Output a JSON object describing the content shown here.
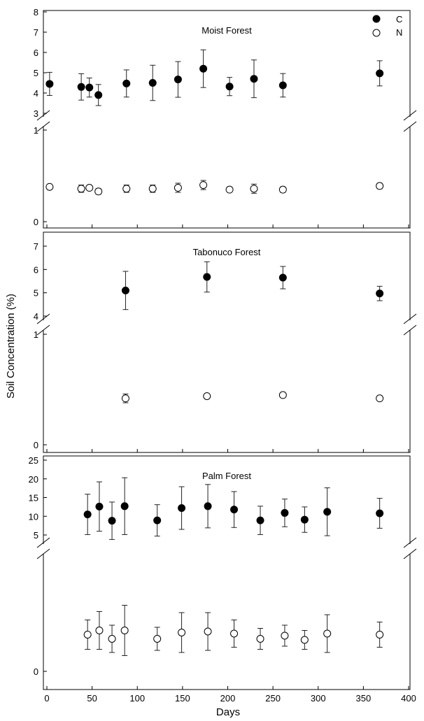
{
  "figure": {
    "ylabel": "Soil Concentration (%)",
    "xlabel": "Days",
    "legend": [
      {
        "label": "C",
        "marker": "filled-circle"
      },
      {
        "label": "N",
        "marker": "open-circle"
      }
    ],
    "legend_placement": "top-right of first panel"
  },
  "chart_data": [
    {
      "type": "scatter",
      "title": "Moist Forest",
      "xlim": [
        0,
        400
      ],
      "x_ticks": [
        0,
        50,
        100,
        150,
        200,
        250,
        300,
        350,
        400
      ],
      "axis_break": true,
      "upper_ylim": [
        3,
        8
      ],
      "upper_ticks": [
        "3",
        "4",
        "5",
        "6",
        "7",
        "8"
      ],
      "lower_ylim": [
        0,
        1
      ],
      "lower_ticks": [
        "0",
        "1"
      ],
      "series": [
        {
          "name": "C",
          "marker": "filled",
          "x": [
            3,
            38,
            47,
            57,
            88,
            117,
            145,
            173,
            202,
            229,
            261,
            368
          ],
          "y": [
            4.45,
            4.3,
            4.27,
            3.9,
            4.47,
            4.5,
            4.67,
            5.2,
            4.32,
            4.7,
            4.38,
            4.97
          ],
          "err": [
            0.57,
            0.65,
            0.47,
            0.52,
            0.67,
            0.87,
            0.88,
            0.93,
            0.45,
            0.93,
            0.58,
            0.62
          ]
        },
        {
          "name": "N",
          "marker": "open",
          "x": [
            3,
            38,
            47,
            57,
            88,
            117,
            145,
            173,
            202,
            229,
            261,
            368
          ],
          "y": [
            0.38,
            0.36,
            0.37,
            0.33,
            0.36,
            0.36,
            0.37,
            0.4,
            0.35,
            0.36,
            0.35,
            0.39
          ],
          "err": [
            0,
            0.04,
            0.02,
            0.03,
            0.04,
            0.04,
            0.05,
            0.05,
            0.02,
            0.05,
            0.03,
            0.03
          ]
        }
      ]
    },
    {
      "type": "scatter",
      "title": "Tabonuco Forest",
      "xlim": [
        0,
        400
      ],
      "axis_break": true,
      "upper_ylim": [
        4,
        7
      ],
      "upper_ticks": [
        "4",
        "5",
        "6",
        "7"
      ],
      "lower_ylim": [
        0,
        1
      ],
      "lower_ticks": [
        "0",
        "1"
      ],
      "series": [
        {
          "name": "C",
          "marker": "filled",
          "x": [
            87,
            177,
            261,
            368
          ],
          "y": [
            5.1,
            5.68,
            5.65,
            4.97
          ],
          "err": [
            0.82,
            0.65,
            0.48,
            0.31
          ]
        },
        {
          "name": "N",
          "marker": "open",
          "x": [
            87,
            177,
            261,
            368
          ],
          "y": [
            0.42,
            0.44,
            0.45,
            0.42
          ],
          "err": [
            0.04,
            0.02,
            0.02,
            0
          ]
        }
      ]
    },
    {
      "type": "scatter",
      "title": "Palm Forest",
      "xlim": [
        0,
        400
      ],
      "axis_break": true,
      "upper_ylim": [
        5,
        25
      ],
      "upper_ticks": [
        "5",
        "10",
        "15",
        "20",
        "25"
      ],
      "lower_ylim": [
        0,
        1
      ],
      "lower_ticks": [
        "0"
      ],
      "series": [
        {
          "name": "C",
          "marker": "filled",
          "x": [
            45,
            58,
            72,
            86,
            122,
            149,
            178,
            207,
            236,
            263,
            285,
            310,
            368
          ],
          "y": [
            10.5,
            12.6,
            8.8,
            12.7,
            8.9,
            12.2,
            12.7,
            11.8,
            8.9,
            10.9,
            9.1,
            11.2,
            10.8
          ],
          "err": [
            5.4,
            6.6,
            5.0,
            7.6,
            4.2,
            5.7,
            5.8,
            4.8,
            3.8,
            3.7,
            3.4,
            6.4,
            4.0
          ]
        },
        {
          "name": "N",
          "marker": "open",
          "x": [
            45,
            58,
            72,
            86,
            122,
            149,
            178,
            207,
            236,
            263,
            285,
            310,
            368
          ],
          "y": [
            0.35,
            0.39,
            0.31,
            0.39,
            0.31,
            0.37,
            0.38,
            0.36,
            0.31,
            0.34,
            0.3,
            0.36,
            0.35
          ],
          "err": [
            0.14,
            0.18,
            0.13,
            0.24,
            0.11,
            0.19,
            0.18,
            0.13,
            0.1,
            0.1,
            0.09,
            0.18,
            0.12
          ]
        }
      ]
    }
  ]
}
